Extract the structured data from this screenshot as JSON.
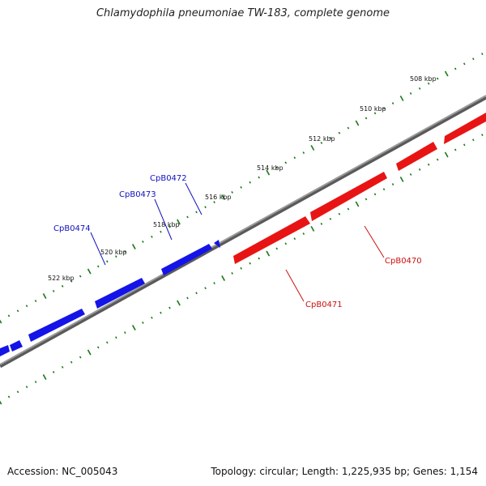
{
  "title": "Chlamydophila pneumoniae TW-183, complete genome",
  "footer": {
    "accession": "Accession: NC_005043",
    "summary": "Topology: circular; Length: 1,225,935 bp; Genes: 1,154"
  },
  "colors": {
    "background": "#ffffff",
    "backbone": "#8c8c8c",
    "forward_strand": "#1010e0",
    "reverse_strand": "#e01414",
    "ticks": "#1a7a1a",
    "forward_label": "#1010c0",
    "reverse_label": "#cc1010"
  },
  "ruler_labels": [
    "508 kbp",
    "510 kbp",
    "512 kbp",
    "514 kbp",
    "516 kbp",
    "518 kbp",
    "520 kbp",
    "522 kbp"
  ],
  "gene_labels": {
    "forward": [
      "CpB0472",
      "CpB0473",
      "CpB0474"
    ],
    "reverse": [
      "CpB0470",
      "CpB0471"
    ]
  }
}
